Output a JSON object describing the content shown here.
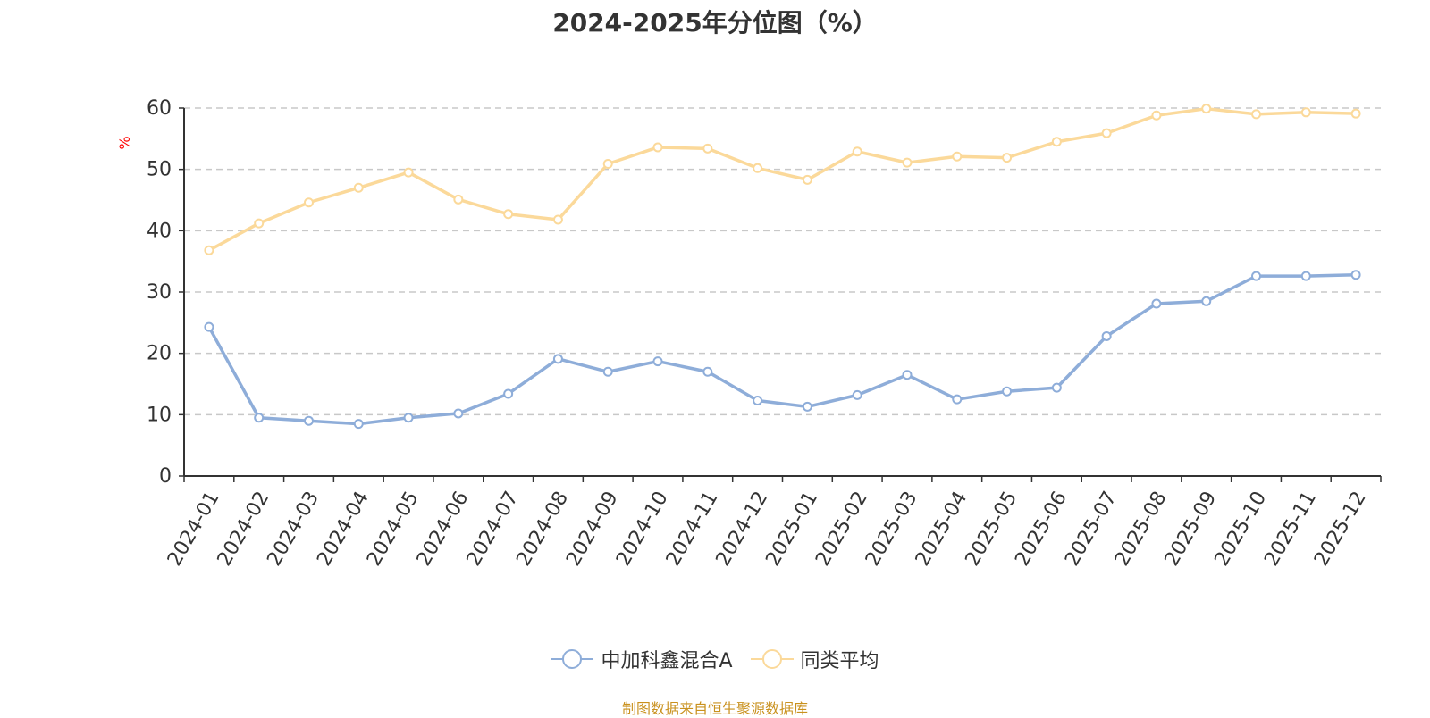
{
  "chart_data": {
    "type": "line",
    "title": "2024-2025年分位图（%）",
    "ylabel": "%",
    "xlabel": "",
    "ylim": [
      0,
      60
    ],
    "yticks": [
      0,
      10,
      20,
      30,
      40,
      50,
      60
    ],
    "grid": true,
    "legend_position": "bottom-center",
    "categories": [
      "2024-01",
      "2024-02",
      "2024-03",
      "2024-04",
      "2024-05",
      "2024-06",
      "2024-07",
      "2024-08",
      "2024-09",
      "2024-10",
      "2024-11",
      "2024-12",
      "2025-01",
      "2025-02",
      "2025-03",
      "2025-04",
      "2025-05",
      "2025-06",
      "2025-07",
      "2025-08",
      "2025-09",
      "2025-10",
      "2025-11",
      "2025-12"
    ],
    "series": [
      {
        "name": "中加科鑫混合A",
        "color": "#8eadd9",
        "values": [
          24.3,
          9.5,
          9.0,
          8.5,
          9.5,
          10.2,
          13.4,
          19.1,
          17.0,
          18.7,
          17.0,
          12.3,
          11.3,
          13.2,
          16.5,
          12.5,
          13.8,
          14.4,
          22.8,
          28.1,
          28.5,
          32.6,
          32.6,
          32.8
        ]
      },
      {
        "name": "同类平均",
        "color": "#fbd99a",
        "values": [
          36.8,
          41.2,
          44.6,
          47.0,
          49.5,
          45.1,
          42.7,
          41.8,
          50.9,
          53.6,
          53.4,
          50.2,
          48.3,
          52.9,
          51.1,
          52.1,
          51.9,
          54.5,
          55.9,
          58.8,
          59.9,
          59.0,
          59.3,
          59.1
        ]
      }
    ]
  },
  "source_text": "制图数据来自恒生聚源数据库"
}
